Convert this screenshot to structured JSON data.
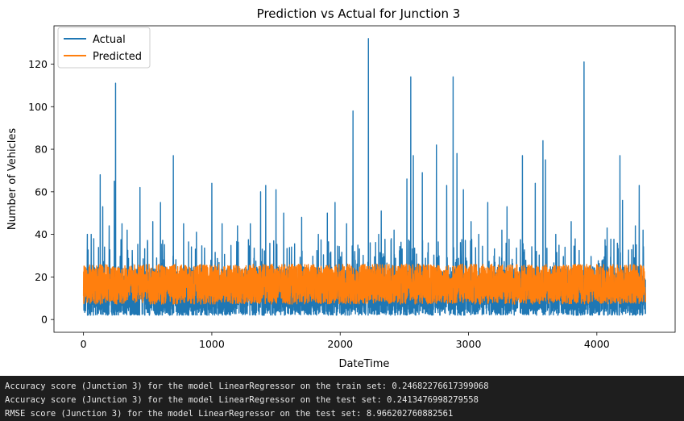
{
  "chart_data": {
    "type": "line",
    "title": "Prediction vs Actual for Junction 3",
    "xlabel": "DateTime",
    "ylabel": "Number of Vehicles",
    "xlim": [
      -230,
      4610
    ],
    "ylim": [
      -6,
      138
    ],
    "xticks": [
      0,
      1000,
      2000,
      3000,
      4000
    ],
    "yticks": [
      0,
      20,
      40,
      60,
      80,
      100,
      120
    ],
    "legend_position": "upper-left",
    "n_points": 4380,
    "series": [
      {
        "name": "Actual",
        "color": "#1f77b4",
        "baseline_range": [
          2,
          26
        ],
        "peaks": [
          [
            30,
            40
          ],
          [
            60,
            40
          ],
          [
            80,
            38
          ],
          [
            130,
            68
          ],
          [
            150,
            53
          ],
          [
            200,
            44
          ],
          [
            240,
            65
          ],
          [
            250,
            111
          ],
          [
            300,
            45
          ],
          [
            340,
            42
          ],
          [
            440,
            62
          ],
          [
            540,
            46
          ],
          [
            600,
            55
          ],
          [
            700,
            77
          ],
          [
            780,
            45
          ],
          [
            880,
            41
          ],
          [
            1000,
            64
          ],
          [
            1080,
            45
          ],
          [
            1200,
            44
          ],
          [
            1300,
            45
          ],
          [
            1380,
            60
          ],
          [
            1420,
            63
          ],
          [
            1500,
            61
          ],
          [
            1560,
            50
          ],
          [
            1700,
            48
          ],
          [
            1830,
            40
          ],
          [
            1900,
            50
          ],
          [
            1960,
            55
          ],
          [
            2050,
            45
          ],
          [
            2100,
            98
          ],
          [
            2220,
            132
          ],
          [
            2300,
            40
          ],
          [
            2320,
            51
          ],
          [
            2420,
            42
          ],
          [
            2520,
            66
          ],
          [
            2550,
            114
          ],
          [
            2570,
            77
          ],
          [
            2640,
            69
          ],
          [
            2750,
            82
          ],
          [
            2830,
            63
          ],
          [
            2880,
            114
          ],
          [
            2910,
            78
          ],
          [
            2960,
            61
          ],
          [
            3020,
            46
          ],
          [
            3080,
            40
          ],
          [
            3150,
            55
          ],
          [
            3260,
            42
          ],
          [
            3300,
            53
          ],
          [
            3420,
            77
          ],
          [
            3520,
            64
          ],
          [
            3580,
            84
          ],
          [
            3600,
            75
          ],
          [
            3680,
            40
          ],
          [
            3800,
            46
          ],
          [
            3900,
            121
          ],
          [
            4080,
            43
          ],
          [
            4180,
            77
          ],
          [
            4200,
            56
          ],
          [
            4300,
            44
          ],
          [
            4330,
            63
          ],
          [
            4360,
            42
          ]
        ]
      },
      {
        "name": "Predicted",
        "color": "#ff7f0e",
        "baseline_range": [
          1,
          26
        ]
      }
    ]
  },
  "console": {
    "lines": [
      "Accuracy score (Junction 3) for the model LinearRegressor on the train set: 0.24682276617399068",
      "Accuracy score (Junction 3) for the model LinearRegressor on the test set: 0.2413476998279558",
      "RMSE score (Junction 3) for the model LinearRegressor on the test set: 8.966202760882561"
    ]
  }
}
